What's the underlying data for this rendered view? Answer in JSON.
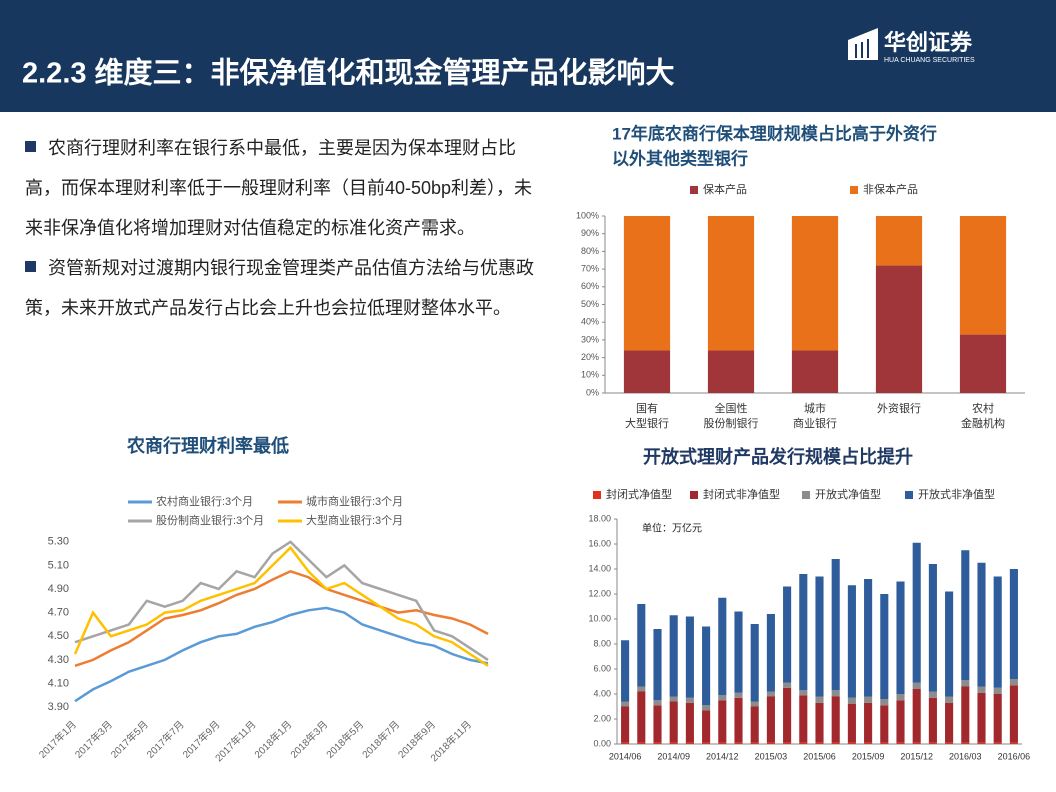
{
  "header": {
    "title": "2.2.3 维度三：非保净值化和现金管理产品化影响大",
    "logo": "华创证券",
    "logo_sub": "HUA CHUANG SECURITIES"
  },
  "bullets": [
    "农商行理财利率在银行系中最低，主要是因为保本理财占比高，而保本理财利率低于一般理财利率（目前40-50bp利差），未来非保净值化将增加理财对估值稳定的标准化资产需求。",
    "资管新规对过渡期内银行现金管理类产品估值方法给与优惠政策，未来开放式产品发行占比会上升也会拉低理财整体水平。"
  ],
  "chart_data": [
    {
      "type": "line",
      "title": [
        "农商行理财利率最低"
      ],
      "categories": [
        "2017年1月",
        null,
        "2017年3月",
        null,
        "2017年5月",
        null,
        "2017年7月",
        null,
        "2017年9月",
        null,
        "2017年11月",
        null,
        "2018年1月",
        null,
        "2018年3月",
        null,
        "2018年5月",
        null,
        "2018年7月",
        null,
        "2018年9月",
        null,
        "2018年11月",
        null
      ],
      "series": [
        {
          "name": "农村商业银行:3个月",
          "color": "#5b9bd5",
          "values": [
            3.95,
            4.05,
            4.12,
            4.2,
            4.25,
            4.3,
            4.38,
            4.45,
            4.5,
            4.52,
            4.58,
            4.62,
            4.68,
            4.72,
            4.74,
            4.7,
            4.6,
            4.55,
            4.5,
            4.45,
            4.42,
            4.35,
            4.3,
            4.27
          ]
        },
        {
          "name": "城市商业银行:3个月",
          "color": "#ed7d31",
          "values": [
            4.25,
            4.3,
            4.38,
            4.45,
            4.55,
            4.65,
            4.68,
            4.72,
            4.78,
            4.85,
            4.9,
            4.98,
            5.05,
            5.0,
            4.9,
            4.85,
            4.8,
            4.75,
            4.7,
            4.72,
            4.68,
            4.65,
            4.6,
            4.52
          ]
        },
        {
          "name": "股份制商业银行:3个月",
          "color": "#a5a5a5",
          "values": [
            4.45,
            4.5,
            4.55,
            4.6,
            4.8,
            4.75,
            4.8,
            4.95,
            4.9,
            5.05,
            5.0,
            5.2,
            5.3,
            5.15,
            5.0,
            5.1,
            4.95,
            4.9,
            4.85,
            4.8,
            4.55,
            4.5,
            4.4,
            4.3
          ]
        },
        {
          "name": "大型商业银行:3个月",
          "color": "#ffc000",
          "values": [
            4.35,
            4.7,
            4.5,
            4.55,
            4.6,
            4.7,
            4.72,
            4.8,
            4.85,
            4.9,
            4.95,
            5.1,
            5.25,
            5.05,
            4.9,
            4.95,
            4.85,
            4.75,
            4.65,
            4.6,
            4.5,
            4.45,
            4.35,
            4.25
          ]
        }
      ],
      "ylim": [
        3.85,
        5.4
      ],
      "yticks": [
        {
          "value": 3.9,
          "label": "3.90"
        },
        {
          "value": 4.1,
          "label": "4.10"
        },
        {
          "value": 4.3,
          "label": "4.30"
        },
        {
          "value": 4.5,
          "label": "4.50"
        },
        {
          "value": 4.7,
          "label": "4.70"
        },
        {
          "value": 4.9,
          "label": "4.90"
        },
        {
          "value": 5.1,
          "label": "5.10"
        },
        {
          "value": 5.3,
          "label": "5.30"
        }
      ],
      "grid": false
    },
    {
      "type": "bar",
      "stacked": true,
      "title": [
        "17年底农商行保本理财规模占比高于外资行",
        "以外其他类型银行"
      ],
      "categories": [
        [
          "国有",
          "大型银行"
        ],
        [
          "全国性",
          "股份制银行"
        ],
        [
          "城市",
          "商业银行"
        ],
        [
          "外资银行"
        ],
        [
          "农村",
          "金融机构"
        ]
      ],
      "series": [
        {
          "name": "保本产品",
          "color": "#a0353a",
          "values": [
            24,
            24,
            24,
            72,
            33
          ]
        },
        {
          "name": "非保本产品",
          "color": "#e8711a",
          "values": [
            76,
            76,
            76,
            28,
            67
          ]
        }
      ],
      "ylim": [
        0,
        100
      ],
      "yticks": [
        {
          "value": 0,
          "label": "0%"
        },
        {
          "value": 10,
          "label": "10%"
        },
        {
          "value": 20,
          "label": "20%"
        },
        {
          "value": 30,
          "label": "30%"
        },
        {
          "value": 40,
          "label": "40%"
        },
        {
          "value": 50,
          "label": "50%"
        },
        {
          "value": 60,
          "label": "60%"
        },
        {
          "value": 70,
          "label": "70%"
        },
        {
          "value": 80,
          "label": "80%"
        },
        {
          "value": 90,
          "label": "90%"
        },
        {
          "value": 100,
          "label": "100%"
        }
      ],
      "grid": false
    },
    {
      "type": "bar",
      "stacked": true,
      "title": [
        "开放式理财产品发行规模占比提升"
      ],
      "annotation": "单位：万亿元",
      "categories": [
        "2014/06",
        null,
        null,
        "2014/09",
        null,
        null,
        "2014/12",
        null,
        null,
        "2015/03",
        null,
        null,
        "2015/06",
        null,
        null,
        "2015/09",
        null,
        null,
        "2015/12",
        null,
        null,
        "2016/03",
        null,
        null,
        "2016/06"
      ],
      "series": [
        {
          "name": "封闭式净值型",
          "color": "#e0301e",
          "values": [
            0.1,
            0.1,
            0.1,
            0.1,
            0.1,
            0.1,
            0.1,
            0.1,
            0.1,
            0.1,
            0.1,
            0.1,
            0.1,
            0.1,
            0.1,
            0.1,
            0.1,
            0.1,
            0.1,
            0.1,
            0.1,
            0.1,
            0.1,
            0.1,
            0.1
          ]
        },
        {
          "name": "封闭式非净值型",
          "color": "#a1282c",
          "values": [
            2.9,
            4.1,
            3.0,
            3.3,
            3.2,
            2.6,
            3.4,
            3.6,
            2.9,
            3.7,
            4.4,
            3.8,
            3.2,
            3.7,
            3.1,
            3.2,
            3.0,
            3.4,
            4.3,
            3.6,
            3.2,
            4.5,
            4.0,
            3.9,
            4.6
          ]
        },
        {
          "name": "开放式净值型",
          "color": "#8c8c8c",
          "values": [
            0.4,
            0.4,
            0.4,
            0.4,
            0.4,
            0.4,
            0.4,
            0.4,
            0.4,
            0.4,
            0.4,
            0.4,
            0.5,
            0.5,
            0.5,
            0.5,
            0.5,
            0.5,
            0.5,
            0.5,
            0.5,
            0.5,
            0.5,
            0.5,
            0.5
          ]
        },
        {
          "name": "开放式非净值型",
          "color": "#2f5d9b",
          "values": [
            4.9,
            6.6,
            5.7,
            6.5,
            6.5,
            6.3,
            7.8,
            6.5,
            6.2,
            6.2,
            7.7,
            9.3,
            9.6,
            10.5,
            9.0,
            9.4,
            8.4,
            9.0,
            11.2,
            10.2,
            8.4,
            10.4,
            9.9,
            8.9,
            8.8
          ]
        }
      ],
      "ylim": [
        0,
        18
      ],
      "yticks": [
        {
          "value": 0,
          "label": "0.00"
        },
        {
          "value": 2,
          "label": "2.00"
        },
        {
          "value": 4,
          "label": "4.00"
        },
        {
          "value": 6,
          "label": "6.00"
        },
        {
          "value": 8,
          "label": "8.00"
        },
        {
          "value": 10,
          "label": "10.00"
        },
        {
          "value": 12,
          "label": "12.00"
        },
        {
          "value": 14,
          "label": "14.00"
        },
        {
          "value": 16,
          "label": "16.00"
        },
        {
          "value": 18,
          "label": "18.00"
        }
      ],
      "grid": false
    }
  ]
}
